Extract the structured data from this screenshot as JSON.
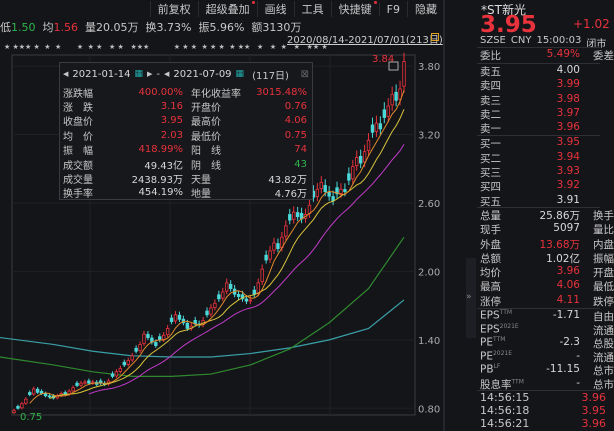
{
  "menu": [
    "前复权",
    "超级叠加",
    "画线",
    "工具",
    "快捷键",
    "F9",
    "隐藏"
  ],
  "quote": {
    "low_label": "低",
    "low": "1.50",
    "avg_label": "均",
    "avg": "1.56",
    "volume": "量20.05万",
    "turnover": "换3.73%",
    "amplitude": "振5.96%",
    "amount": "额3130万"
  },
  "range_label": "2020/08/14-2021/07/01(213日)",
  "stats": {
    "start_date": "2021-01-14",
    "end_date": "2021-07-09",
    "days": "(117日)",
    "sep": "-",
    "rows": [
      [
        "涨跌幅",
        "400.00%",
        "年化收益率",
        "3015.48%"
      ],
      [
        "涨　跌",
        "3.16",
        "开盘价",
        "0.76"
      ],
      [
        "收盘价",
        "3.95",
        "最高价",
        "4.06"
      ],
      [
        "均　价",
        "2.03",
        "最低价",
        "0.75"
      ],
      [
        "振　幅",
        "418.99%",
        "阳　线",
        "74"
      ],
      [
        "成交额",
        "49.43亿",
        "阴　线",
        "43"
      ],
      [
        "成交量",
        "2438.93万",
        "天量",
        "43.82万"
      ],
      [
        "换手率",
        "454.19%",
        "地量",
        "4.76万"
      ]
    ],
    "row_colors": [
      [
        "red",
        "red"
      ],
      [
        "red",
        "red"
      ],
      [
        "red",
        "red"
      ],
      [
        "red",
        "red"
      ],
      [
        "red",
        "red"
      ],
      [
        "white",
        "green"
      ],
      [
        "white",
        "white"
      ],
      [
        "white",
        "white"
      ]
    ]
  },
  "side": {
    "name": "*ST新光",
    "price": "3.95",
    "change": "+1.02",
    "exchange": "SZSE",
    "currency": "CNY",
    "time": "15:00:03",
    "status": "闭市",
    "weibi_label": "委比",
    "weibi": "5.49%",
    "weicha_label": "委差",
    "asks": [
      [
        "卖五",
        "4.00",
        "white"
      ],
      [
        "卖四",
        "3.99",
        "red"
      ],
      [
        "卖三",
        "3.98",
        "red"
      ],
      [
        "卖二",
        "3.97",
        "red"
      ],
      [
        "卖一",
        "3.96",
        "red"
      ]
    ],
    "bids": [
      [
        "买一",
        "3.95",
        "red"
      ],
      [
        "买二",
        "3.94",
        "red"
      ],
      [
        "买三",
        "3.93",
        "red"
      ],
      [
        "买四",
        "3.92",
        "red"
      ],
      [
        "买五",
        "3.91",
        "white"
      ]
    ],
    "info": [
      [
        "总量",
        "25.86万",
        "white",
        "换手"
      ],
      [
        "现手",
        "5097",
        "white",
        "量比"
      ],
      [
        "外盘",
        "13.68万",
        "red",
        "内盘"
      ],
      [
        "总额",
        "1.02亿",
        "white",
        "振幅"
      ],
      [
        "均价",
        "3.96",
        "red",
        "开盘"
      ],
      [
        "最高",
        "4.06",
        "red",
        "最低"
      ],
      [
        "涨停",
        "4.11",
        "red",
        "跌停"
      ]
    ],
    "fin": [
      [
        "EPS",
        "TTM",
        "-1.71",
        "自由"
      ],
      [
        "EPS",
        "2021E",
        "",
        "流通"
      ],
      [
        "PE",
        "TTM",
        "-2.3",
        "总股"
      ],
      [
        "PE",
        "2021E",
        "-",
        "流通"
      ],
      [
        "PB",
        "LF",
        "-11.15",
        "总市"
      ],
      [
        "股息率",
        "TTM",
        "-",
        "总市"
      ]
    ],
    "ticks": [
      [
        "14:56:15",
        "3.96"
      ],
      [
        "14:56:18",
        "3.95"
      ],
      [
        "14:56:21",
        "3.96"
      ]
    ]
  },
  "chart_data": {
    "type": "candlestick",
    "y_ticks": [
      "3.80",
      "3.20",
      "2.60",
      "2.00",
      "1.40",
      "0.80"
    ],
    "ylim": [
      0.75,
      3.88
    ],
    "high_label": "3.84",
    "low_label": "0.75",
    "colors": {
      "up": "#e8323c",
      "down": "#4ad8d8",
      "ma5": "#e08a2a",
      "ma10": "#d8c23a",
      "ma20": "#c03ac8",
      "ma60": "#2f8a2f",
      "ma120": "#3aa0a8"
    },
    "closes": [
      0.78,
      0.8,
      0.84,
      0.88,
      0.92,
      0.97,
      0.94,
      0.93,
      0.91,
      0.9,
      0.89,
      0.91,
      0.93,
      0.92,
      0.95,
      0.98,
      1.0,
      1.02,
      1.03,
      1.02,
      1.03,
      1.01,
      1.02,
      1.01,
      1.04,
      1.08,
      1.12,
      1.15,
      1.18,
      1.22,
      1.26,
      1.3,
      1.36,
      1.45,
      1.42,
      1.38,
      1.35,
      1.4,
      1.44,
      1.5,
      1.56,
      1.62,
      1.58,
      1.55,
      1.5,
      1.52,
      1.54,
      1.53,
      1.57,
      1.62,
      1.68,
      1.72,
      1.76,
      1.82,
      1.9,
      1.85,
      1.8,
      1.78,
      1.76,
      1.74,
      1.75,
      1.8,
      1.9,
      2.02,
      2.1,
      2.18,
      2.25,
      2.2,
      2.3,
      2.4,
      2.45,
      2.52,
      2.48,
      2.46,
      2.5,
      2.58,
      2.65,
      2.72,
      2.78,
      2.7,
      2.66,
      2.62,
      2.68,
      2.72,
      2.7,
      2.8,
      2.92,
      3.0,
      2.95,
      3.05,
      3.15,
      3.22,
      3.3,
      3.25,
      3.35,
      3.45,
      3.55,
      3.5,
      3.6,
      3.84
    ],
    "ma60_every10": [
      1.25,
      1.18,
      1.12,
      1.08,
      1.08,
      1.1,
      1.18,
      1.32,
      1.55,
      1.85,
      2.3
    ],
    "ma120_every10": [
      1.42,
      1.36,
      1.3,
      1.26,
      1.25,
      1.25,
      1.28,
      1.33,
      1.4,
      1.5,
      1.75
    ]
  }
}
